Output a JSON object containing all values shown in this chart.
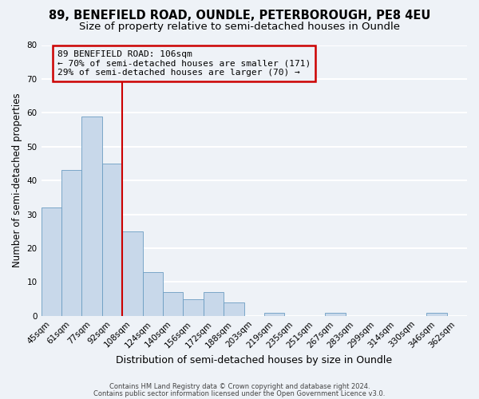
{
  "title": "89, BENEFIELD ROAD, OUNDLE, PETERBOROUGH, PE8 4EU",
  "subtitle": "Size of property relative to semi-detached houses in Oundle",
  "xlabel": "Distribution of semi-detached houses by size in Oundle",
  "ylabel": "Number of semi-detached properties",
  "bin_labels": [
    "45sqm",
    "61sqm",
    "77sqm",
    "92sqm",
    "108sqm",
    "124sqm",
    "140sqm",
    "156sqm",
    "172sqm",
    "188sqm",
    "203sqm",
    "219sqm",
    "235sqm",
    "251sqm",
    "267sqm",
    "283sqm",
    "299sqm",
    "314sqm",
    "330sqm",
    "346sqm",
    "362sqm"
  ],
  "bar_values": [
    32,
    43,
    59,
    45,
    25,
    13,
    7,
    5,
    7,
    4,
    0,
    1,
    0,
    0,
    1,
    0,
    0,
    0,
    0,
    1,
    0
  ],
  "bar_color": "#c8d8ea",
  "bar_edge_color": "#6b9dc2",
  "vline_color": "#cc0000",
  "vline_at_bin": 4,
  "annotation_title": "89 BENEFIELD ROAD: 106sqm",
  "annotation_line1": "← 70% of semi-detached houses are smaller (171)",
  "annotation_line2": "29% of semi-detached houses are larger (70) →",
  "annotation_box_edge": "#cc0000",
  "ylim": [
    0,
    80
  ],
  "yticks": [
    0,
    10,
    20,
    30,
    40,
    50,
    60,
    70,
    80
  ],
  "footer1": "Contains HM Land Registry data © Crown copyright and database right 2024.",
  "footer2": "Contains public sector information licensed under the Open Government Licence v3.0.",
  "background_color": "#eef2f7",
  "grid_color": "#ffffff",
  "title_fontsize": 10.5,
  "subtitle_fontsize": 9.5,
  "ylabel_fontsize": 8.5,
  "xlabel_fontsize": 9,
  "tick_fontsize": 7.5,
  "annot_fontsize": 8,
  "footer_fontsize": 6
}
